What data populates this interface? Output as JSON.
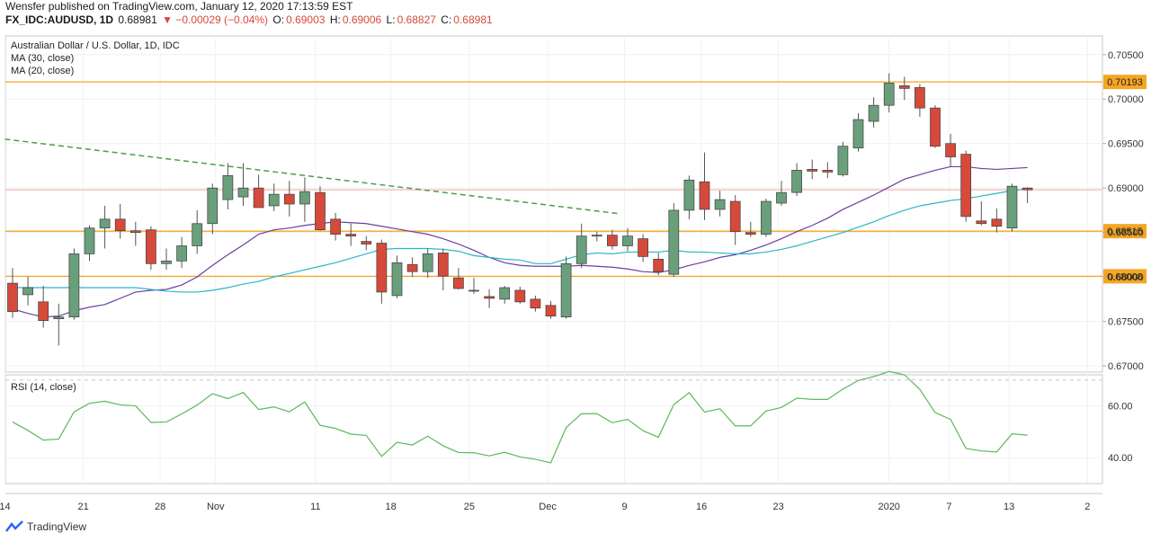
{
  "header": {
    "publisher_line": "Wensfer published on TradingView.com, January 12, 2020 17:13:59 EST",
    "symbol": "FX_IDC:AUDUSD, 1D",
    "last": "0.68981",
    "change": "▼ −0.00029 (−0.04%)",
    "open_label": "O:",
    "open": "0.69003",
    "high_label": "H:",
    "high": "0.69006",
    "low_label": "L:",
    "low": "0.68827",
    "close_label": "C:",
    "close": "0.68981"
  },
  "legend": {
    "title": "Australian Dollar / U.S. Dollar, 1D, IDC",
    "ma30": "MA (30, close)",
    "ma20": "MA (20, close)",
    "rsi": "RSI (14, close)"
  },
  "footer": {
    "brand": "TradingView"
  },
  "colors": {
    "up": "#6a9f7c",
    "down": "#d64a3b",
    "ma30": "#6b3fa0",
    "ma20": "#2bb5c9",
    "trend": "#4a9e4a",
    "level": "#f5a623",
    "rsi": "#5cb85c"
  },
  "chart_data": [
    {
      "type": "candlestick",
      "title": "Australian Dollar / U.S. Dollar, 1D, IDC",
      "ylim": [
        0.6693,
        0.7071
      ],
      "yticks": [
        "0.70500",
        "0.70000",
        "0.69500",
        "0.69000",
        "0.68500",
        "0.68000",
        "0.67500",
        "0.67000"
      ],
      "ytick_values": [
        0.705,
        0.7,
        0.695,
        0.69,
        0.685,
        0.68,
        0.675,
        0.67
      ],
      "x_ticks": [
        {
          "label": "14",
          "day": -0.5
        },
        {
          "label": "21",
          "day": 4.6
        },
        {
          "label": "28",
          "day": 9.6
        },
        {
          "label": "Nov",
          "day": 13.2
        },
        {
          "label": "11",
          "day": 19.7
        },
        {
          "label": "18",
          "day": 24.6
        },
        {
          "label": "25",
          "day": 29.7
        },
        {
          "label": "Dec",
          "day": 34.8
        },
        {
          "label": "9",
          "day": 39.8
        },
        {
          "label": "16",
          "day": 44.8
        },
        {
          "label": "23",
          "day": 49.8
        },
        {
          "label": "2020",
          "day": 57.0
        },
        {
          "label": "7",
          "day": 60.9
        },
        {
          "label": "13",
          "day": 64.8
        },
        {
          "label": "2",
          "day": 69.9
        }
      ],
      "candles": [
        [
          0.6793,
          0.681,
          0.6754,
          0.6761
        ],
        [
          0.678,
          0.68,
          0.6768,
          0.6788
        ],
        [
          0.6772,
          0.679,
          0.6743,
          0.6751
        ],
        [
          0.6753,
          0.677,
          0.6723,
          0.6755
        ],
        [
          0.6755,
          0.6832,
          0.6752,
          0.6826
        ],
        [
          0.6826,
          0.6858,
          0.6818,
          0.6855
        ],
        [
          0.6855,
          0.688,
          0.6832,
          0.6865
        ],
        [
          0.6865,
          0.6882,
          0.6843,
          0.6852
        ],
        [
          0.6852,
          0.6862,
          0.6835,
          0.685
        ],
        [
          0.6853,
          0.6857,
          0.6808,
          0.6815
        ],
        [
          0.6815,
          0.6832,
          0.6808,
          0.6818
        ],
        [
          0.6818,
          0.6845,
          0.681,
          0.6835
        ],
        [
          0.6835,
          0.6875,
          0.6826,
          0.686
        ],
        [
          0.686,
          0.6905,
          0.6848,
          0.69
        ],
        [
          0.6887,
          0.6928,
          0.6876,
          0.6914
        ],
        [
          0.689,
          0.6928,
          0.688,
          0.69
        ],
        [
          0.69,
          0.6915,
          0.6878,
          0.6878
        ],
        [
          0.688,
          0.6905,
          0.6874,
          0.6893
        ],
        [
          0.6893,
          0.6908,
          0.6868,
          0.6882
        ],
        [
          0.6882,
          0.6912,
          0.6862,
          0.6896
        ],
        [
          0.6895,
          0.6902,
          0.6852,
          0.6853
        ],
        [
          0.6865,
          0.6872,
          0.6841,
          0.6848
        ],
        [
          0.6848,
          0.686,
          0.6835,
          0.6846
        ],
        [
          0.684,
          0.6846,
          0.683,
          0.6837
        ],
        [
          0.6838,
          0.6842,
          0.677,
          0.6783
        ],
        [
          0.6779,
          0.6824,
          0.6776,
          0.6816
        ],
        [
          0.6814,
          0.6822,
          0.68,
          0.6806
        ],
        [
          0.6806,
          0.6832,
          0.6799,
          0.6826
        ],
        [
          0.6827,
          0.6832,
          0.6785,
          0.6801
        ],
        [
          0.6799,
          0.681,
          0.6786,
          0.6787
        ],
        [
          0.6785,
          0.6799,
          0.6781,
          0.6785
        ],
        [
          0.6778,
          0.6786,
          0.6765,
          0.6776
        ],
        [
          0.6775,
          0.679,
          0.677,
          0.6788
        ],
        [
          0.6785,
          0.6789,
          0.677,
          0.6772
        ],
        [
          0.6775,
          0.6779,
          0.6761,
          0.6765
        ],
        [
          0.6768,
          0.6773,
          0.6753,
          0.6756
        ],
        [
          0.6755,
          0.6823,
          0.6753,
          0.6815
        ],
        [
          0.6815,
          0.686,
          0.681,
          0.6846
        ],
        [
          0.6846,
          0.6851,
          0.684,
          0.6847
        ],
        [
          0.6847,
          0.6853,
          0.6831,
          0.6835
        ],
        [
          0.6835,
          0.6855,
          0.6829,
          0.6846
        ],
        [
          0.6843,
          0.6848,
          0.6817,
          0.6823
        ],
        [
          0.682,
          0.6827,
          0.6802,
          0.6806
        ],
        [
          0.6803,
          0.6883,
          0.68,
          0.6875
        ],
        [
          0.6875,
          0.6914,
          0.6865,
          0.6909
        ],
        [
          0.6907,
          0.694,
          0.6864,
          0.6876
        ],
        [
          0.6876,
          0.6897,
          0.6868,
          0.6887
        ],
        [
          0.6885,
          0.6892,
          0.6836,
          0.6851
        ],
        [
          0.685,
          0.6862,
          0.6845,
          0.6848
        ],
        [
          0.6848,
          0.6888,
          0.6845,
          0.6885
        ],
        [
          0.6883,
          0.6908,
          0.688,
          0.6895
        ],
        [
          0.6895,
          0.6928,
          0.6891,
          0.692
        ],
        [
          0.6921,
          0.6932,
          0.691,
          0.6919
        ],
        [
          0.692,
          0.6929,
          0.6911,
          0.6918
        ],
        [
          0.6915,
          0.6952,
          0.6913,
          0.6947
        ],
        [
          0.6945,
          0.6984,
          0.6941,
          0.6977
        ],
        [
          0.6975,
          0.7002,
          0.6968,
          0.6993
        ],
        [
          0.6993,
          0.7029,
          0.6985,
          0.7018
        ],
        [
          0.7015,
          0.7025,
          0.6999,
          0.7012
        ],
        [
          0.7013,
          0.7017,
          0.698,
          0.699
        ],
        [
          0.699,
          0.6993,
          0.6945,
          0.6947
        ],
        [
          0.695,
          0.6961,
          0.6924,
          0.6935
        ],
        [
          0.6938,
          0.6942,
          0.6862,
          0.6868
        ],
        [
          0.6863,
          0.6885,
          0.6858,
          0.686
        ],
        [
          0.6865,
          0.6877,
          0.685,
          0.6857
        ],
        [
          0.6855,
          0.6905,
          0.6851,
          0.6902
        ],
        [
          0.69,
          0.6901,
          0.6883,
          0.6898
        ]
      ],
      "ma30": [
        0.6764,
        0.6759,
        0.6755,
        0.6756,
        0.6762,
        0.6766,
        0.6769,
        0.6776,
        0.6783,
        0.6785,
        0.6786,
        0.6791,
        0.68,
        0.6813,
        0.6825,
        0.6836,
        0.6848,
        0.6853,
        0.6855,
        0.6858,
        0.686,
        0.6862,
        0.6861,
        0.686,
        0.6857,
        0.6854,
        0.6851,
        0.6848,
        0.6843,
        0.6837,
        0.683,
        0.6822,
        0.6816,
        0.6813,
        0.6812,
        0.6812,
        0.6812,
        0.6813,
        0.6812,
        0.6811,
        0.6809,
        0.6806,
        0.6805,
        0.6808,
        0.6813,
        0.6817,
        0.6822,
        0.6825,
        0.683,
        0.6836,
        0.6843,
        0.6851,
        0.6858,
        0.6866,
        0.6876,
        0.6884,
        0.6892,
        0.6901,
        0.691,
        0.6915,
        0.692,
        0.6924,
        0.6924,
        0.6922,
        0.6921,
        0.6922,
        0.6923
      ],
      "ma20": [
        0.6788,
        0.6788,
        0.6788,
        0.6788,
        0.6788,
        0.6788,
        0.6788,
        0.6788,
        0.6788,
        0.6786,
        0.6784,
        0.6783,
        0.6783,
        0.6785,
        0.6788,
        0.6792,
        0.6795,
        0.68,
        0.6804,
        0.6808,
        0.6812,
        0.6816,
        0.6821,
        0.6826,
        0.6831,
        0.6832,
        0.6832,
        0.6832,
        0.6831,
        0.6829,
        0.6824,
        0.6822,
        0.682,
        0.6819,
        0.6815,
        0.6815,
        0.682,
        0.6825,
        0.6827,
        0.6826,
        0.6828,
        0.6828,
        0.6828,
        0.683,
        0.6828,
        0.6828,
        0.6827,
        0.6826,
        0.6826,
        0.6828,
        0.6831,
        0.6835,
        0.684,
        0.6845,
        0.685,
        0.6856,
        0.6862,
        0.6869,
        0.6875,
        0.688,
        0.6883,
        0.6886,
        0.6888,
        0.6891,
        0.6894,
        0.6897,
        0.6899
      ],
      "trendline": [
        [
          -0.5,
          0.6955
        ],
        [
          39.5,
          0.6871
        ]
      ],
      "levels": [
        {
          "value": 0.70193,
          "label": "0.70193"
        },
        {
          "value": 0.68515,
          "label": "0.68515"
        },
        {
          "value": 0.68008,
          "label": "0.68008"
        }
      ]
    },
    {
      "type": "line",
      "title": "RSI (14, close)",
      "ylim": [
        30,
        72
      ],
      "yticks": [
        "60.00",
        "40.00"
      ],
      "ytick_values": [
        60,
        40
      ],
      "dashed_levels": [
        70,
        30
      ],
      "values": [
        53.8,
        50.5,
        46.8,
        47.2,
        57.7,
        61.0,
        61.8,
        60.4,
        60.0,
        53.6,
        53.8,
        56.9,
        60.3,
        64.7,
        62.8,
        65.2,
        58.6,
        59.6,
        57.7,
        61.5,
        52.5,
        51.3,
        49.1,
        48.6,
        40.5,
        45.9,
        44.9,
        48.3,
        44.6,
        42.0,
        41.9,
        40.7,
        42.1,
        40.3,
        39.4,
        38.0,
        51.6,
        57.0,
        57.0,
        53.5,
        54.8,
        50.4,
        47.9,
        60.5,
        65.1,
        57.6,
        58.9,
        52.3,
        52.3,
        58.0,
        59.4,
        63.0,
        62.5,
        62.5,
        66.5,
        69.8,
        71.3,
        73.3,
        72.0,
        66.4,
        57.4,
        54.8,
        43.6,
        42.6,
        42.2,
        49.2,
        48.7
      ]
    }
  ]
}
